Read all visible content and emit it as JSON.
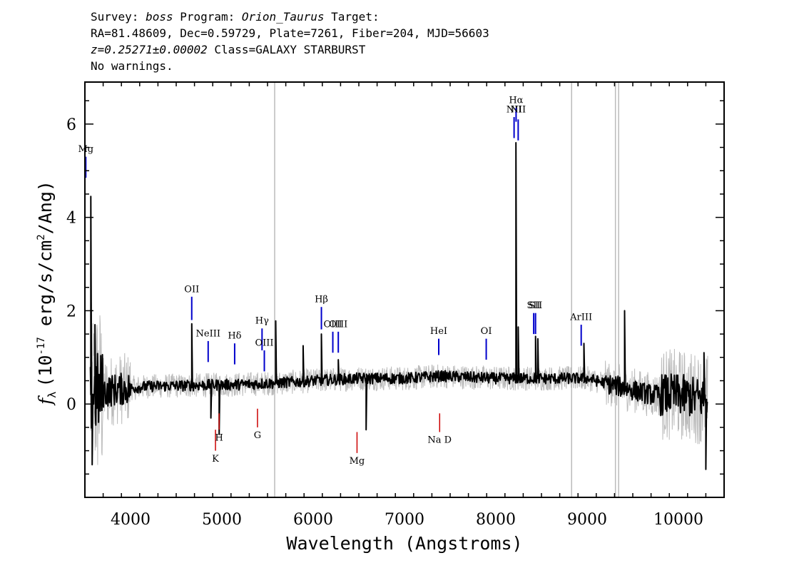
{
  "header": {
    "line1_a": "Survey: ",
    "survey": "boss",
    "line1_b": " Program: ",
    "program": "Orion_Taurus",
    "line1_c": " Target:",
    "line2": "RA=81.48609, Dec=0.59729, Plate=7261, Fiber=204, MJD=56603",
    "redshift": "z=0.25271±0.00002",
    "class_text": " Class=GALAXY STARBURST",
    "line4": "No warnings."
  },
  "chart_data": {
    "type": "line",
    "xlabel": "Wavelength (Angstroms)",
    "ylabel_symbol": "f",
    "ylabel_sub": "λ",
    "ylabel_text": "(10",
    "ylabel_exp": "-17",
    "ylabel_text2": " erg/s/cm",
    "ylabel_exp2": "2",
    "ylabel_text3": "/Ang)",
    "xlim": [
      3500,
      10500
    ],
    "ylim": [
      -2,
      6.9
    ],
    "xticks": [
      4000,
      5000,
      6000,
      7000,
      8000,
      9000,
      10000
    ],
    "yticks": [
      0,
      2,
      4,
      6
    ],
    "colors": {
      "spectrum": "#000000",
      "error": "#bbbbbb",
      "emission": "#0000cc",
      "absorption": "#cc0000",
      "masked": "#bbbbbb"
    },
    "masked_x": [
      5578,
      8830,
      9310,
      9345
    ],
    "spectrum_anchors": [
      {
        "x": 3560,
        "y": 0.2
      },
      {
        "x": 3800,
        "y": 0.3
      },
      {
        "x": 4200,
        "y": 0.38
      },
      {
        "x": 4700,
        "y": 0.4
      },
      {
        "x": 5200,
        "y": 0.42
      },
      {
        "x": 5600,
        "y": 0.45
      },
      {
        "x": 6000,
        "y": 0.5
      },
      {
        "x": 6500,
        "y": 0.55
      },
      {
        "x": 7000,
        "y": 0.55
      },
      {
        "x": 7400,
        "y": 0.6
      },
      {
        "x": 8000,
        "y": 0.55
      },
      {
        "x": 8500,
        "y": 0.55
      },
      {
        "x": 9000,
        "y": 0.55
      },
      {
        "x": 9300,
        "y": 0.4
      },
      {
        "x": 9700,
        "y": 0.2
      },
      {
        "x": 10000,
        "y": 0.2
      },
      {
        "x": 10300,
        "y": 0.1
      }
    ],
    "spikes": [
      {
        "x": 3565,
        "y": 4.45
      },
      {
        "x": 3580,
        "y": -1.3
      },
      {
        "x": 3610,
        "y": 1.7
      },
      {
        "x": 4670,
        "y": 1.72
      },
      {
        "x": 4880,
        "y": -0.3
      },
      {
        "x": 4970,
        "y": -0.65
      },
      {
        "x": 5590,
        "y": 1.78
      },
      {
        "x": 5890,
        "y": 1.25
      },
      {
        "x": 6090,
        "y": 1.5
      },
      {
        "x": 6275,
        "y": 0.95
      },
      {
        "x": 6580,
        "y": -0.55
      },
      {
        "x": 8220,
        "y": 5.6
      },
      {
        "x": 8245,
        "y": 1.65
      },
      {
        "x": 8435,
        "y": 1.45
      },
      {
        "x": 8460,
        "y": 1.4
      },
      {
        "x": 8965,
        "y": 1.3
      },
      {
        "x": 9410,
        "y": 2.0
      },
      {
        "x": 10280,
        "y": 1.1
      },
      {
        "x": 10300,
        "y": -1.4
      }
    ],
    "emission_lines": [
      {
        "name": "Mg",
        "x": 3510,
        "y1": 4.85,
        "y2": 5.3,
        "ly": 5.4
      },
      {
        "name": "OII",
        "x": 4670,
        "y1": 1.8,
        "y2": 2.3,
        "ly": 2.4
      },
      {
        "name": "NeIII",
        "x": 4850,
        "y1": 0.9,
        "y2": 1.35,
        "ly": 1.45
      },
      {
        "name": "Hδ",
        "x": 5140,
        "y1": 0.85,
        "y2": 1.3,
        "ly": 1.4
      },
      {
        "name": "Hγ",
        "x": 5440,
        "y1": 1.15,
        "y2": 1.62,
        "ly": 1.72
      },
      {
        "name": "OIII",
        "x": 5465,
        "y1": 0.7,
        "y2": 1.15,
        "ly": 1.25
      },
      {
        "name": "Hβ",
        "x": 6090,
        "y1": 1.6,
        "y2": 2.08,
        "ly": 2.18
      },
      {
        "name": "OIII",
        "x": 6215,
        "y1": 1.1,
        "y2": 1.55,
        "ly": 1.65
      },
      {
        "name": "OIII",
        "x": 6275,
        "y1": 1.1,
        "y2": 1.55,
        "ly": 1.65
      },
      {
        "name": "HeI",
        "x": 7375,
        "y1": 1.05,
        "y2": 1.4,
        "ly": 1.5
      },
      {
        "name": "OI",
        "x": 7895,
        "y1": 0.95,
        "y2": 1.4,
        "ly": 1.5
      },
      {
        "name": "NII",
        "x": 8200,
        "y1": 5.7,
        "y2": 6.15,
        "ly": 6.25
      },
      {
        "name": "Hα",
        "x": 8222,
        "y1": 6.05,
        "y2": 6.35,
        "ly": 6.45
      },
      {
        "name": "NII",
        "x": 8245,
        "y1": 5.65,
        "y2": 6.1,
        "ly": 6.25
      },
      {
        "name": "SII",
        "x": 8415,
        "y1": 1.5,
        "y2": 1.95,
        "ly": 2.05
      },
      {
        "name": "SII",
        "x": 8435,
        "y1": 1.5,
        "y2": 1.95,
        "ly": 2.05
      },
      {
        "name": "ArIII",
        "x": 8935,
        "y1": 1.25,
        "y2": 1.7,
        "ly": 1.8
      }
    ],
    "absorption_lines": [
      {
        "name": "K",
        "x": 4930,
        "y1": -0.55,
        "y2": -1.0,
        "ly": -1.05
      },
      {
        "name": "H",
        "x": 4970,
        "y1": -0.2,
        "y2": -0.55,
        "ly": -0.6
      },
      {
        "name": "G",
        "x": 5390,
        "y1": -0.1,
        "y2": -0.5,
        "ly": -0.55
      },
      {
        "name": "Mg",
        "x": 6480,
        "y1": -0.6,
        "y2": -1.05,
        "ly": -1.1
      },
      {
        "name": "Na D",
        "x": 7385,
        "y1": -0.2,
        "y2": -0.6,
        "ly": -0.65
      }
    ]
  }
}
